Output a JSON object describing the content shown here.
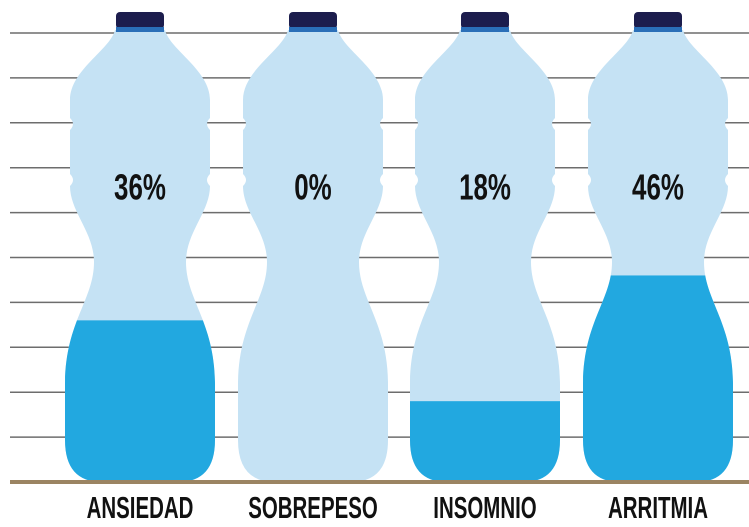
{
  "chart_data": {
    "type": "pictogram",
    "categories": [
      "ANSIEDAD",
      "SOBREPESO",
      "INSOMNIO",
      "ARRITMIA"
    ],
    "values": [
      36,
      0,
      18,
      46
    ],
    "value_labels": [
      "36%",
      "0%",
      "18%",
      "46%"
    ],
    "color": "#22a8e0",
    "background_color": "#c5e2f4",
    "ylim": [
      0,
      100
    ],
    "yticks": [
      0,
      10,
      20,
      30,
      40,
      50,
      60,
      70,
      80,
      90,
      100
    ],
    "grid": true
  }
}
